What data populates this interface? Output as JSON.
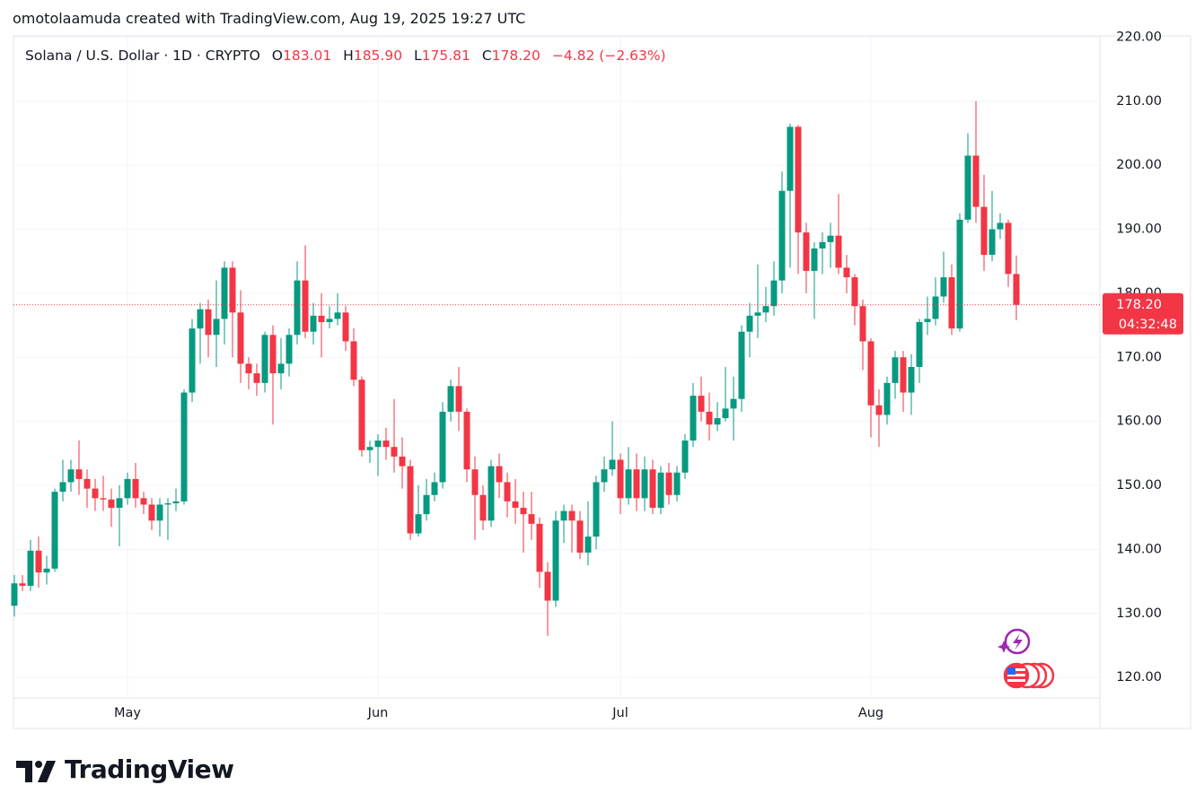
{
  "header": {
    "attribution": "omotolaamuda created with TradingView.com, Aug 19, 2025 19:27 UTC"
  },
  "footer": {
    "brand": "TradingView"
  },
  "chart_data": {
    "type": "candlestick",
    "legend": {
      "symbol": "Solana / U.S. Dollar · 1D · CRYPTO",
      "open_label": "O",
      "open": "183.01",
      "high_label": "H",
      "high": "185.90",
      "low_label": "L",
      "low": "175.81",
      "close_label": "C",
      "close": "178.20",
      "change": "−4.82 (−2.63%)"
    },
    "last_price_label": {
      "price": "178.20",
      "countdown": "04:32:48"
    },
    "up_color": "#089981",
    "down_color": "#f23645",
    "grid": true,
    "ylim": [
      116.8,
      220.2
    ],
    "yticks": [
      {
        "value": 120,
        "label": "120.00"
      },
      {
        "value": 130,
        "label": "130.00"
      },
      {
        "value": 140,
        "label": "140.00"
      },
      {
        "value": 150,
        "label": "150.00"
      },
      {
        "value": 160,
        "label": "160.00"
      },
      {
        "value": 170,
        "label": "170.00"
      },
      {
        "value": 180,
        "label": "180.00"
      },
      {
        "value": 190,
        "label": "190.00"
      },
      {
        "value": 200,
        "label": "200.00"
      },
      {
        "value": 210,
        "label": "210.00"
      },
      {
        "value": 220,
        "label": "220.00"
      }
    ],
    "categories": [
      null,
      null,
      null,
      null,
      null,
      null,
      null,
      null,
      null,
      null,
      null,
      null,
      null,
      null,
      "May",
      null,
      null,
      null,
      null,
      null,
      null,
      null,
      null,
      null,
      null,
      null,
      null,
      null,
      null,
      null,
      null,
      null,
      null,
      null,
      null,
      null,
      null,
      null,
      null,
      null,
      null,
      null,
      null,
      null,
      null,
      "Jun",
      null,
      null,
      null,
      null,
      null,
      null,
      null,
      null,
      null,
      null,
      null,
      null,
      null,
      null,
      null,
      null,
      null,
      null,
      null,
      null,
      null,
      null,
      null,
      null,
      null,
      null,
      null,
      null,
      null,
      "Jul",
      null,
      null,
      null,
      null,
      null,
      null,
      null,
      null,
      null,
      null,
      null,
      null,
      null,
      null,
      null,
      null,
      null,
      null,
      null,
      null,
      null,
      null,
      null,
      null,
      null,
      null,
      null,
      null,
      null,
      null,
      "Aug",
      null,
      null,
      null,
      null,
      null,
      null,
      null,
      null,
      null,
      null,
      null,
      null,
      null,
      null,
      null,
      null,
      null,
      null
    ],
    "open": [
      131.2,
      134.7,
      134.3,
      139.8,
      136.4,
      137,
      149,
      150.5,
      152.5,
      151,
      149.5,
      148,
      147.8,
      146.5,
      148,
      151,
      148,
      147,
      144.5,
      147,
      147.2,
      147.5,
      164.5,
      174.5,
      177.5,
      173.5,
      176,
      184,
      177,
      169,
      167.5,
      166,
      173.5,
      167.5,
      169,
      173.5,
      182,
      174,
      176.5,
      175.5,
      176,
      177,
      172.5,
      166.5,
      155.5,
      156,
      157,
      156,
      154.5,
      153,
      142.5,
      145.5,
      148.5,
      150.5,
      161.5,
      165.5,
      161.5,
      152.5,
      148.5,
      144.5,
      153,
      150.5,
      147.5,
      146.5,
      145.5,
      144,
      136.5,
      132,
      144.5,
      146,
      144.5,
      139.5,
      142,
      150.5,
      152.5,
      154,
      148,
      152.5,
      148,
      152.5,
      146.5,
      152,
      148.5,
      152,
      157,
      164,
      161.5,
      159.5,
      160.5,
      162,
      163.5,
      174,
      176.5,
      177,
      178,
      182,
      196,
      206,
      189.5,
      183.5,
      187,
      188,
      189,
      184,
      182.5,
      178,
      172.5,
      162.5,
      161,
      166,
      170,
      164.5,
      168.5,
      175.5,
      176,
      179.5,
      182.5,
      174.5,
      191.5,
      201.5,
      193.5,
      186,
      190,
      191,
      183.01
    ],
    "high": [
      136,
      136,
      141.5,
      142,
      139,
      149.5,
      154,
      154,
      157,
      152.5,
      151,
      151.5,
      149.5,
      150,
      152,
      153.5,
      149,
      148,
      148,
      148,
      149.5,
      165,
      176,
      178.5,
      179,
      182,
      185,
      185,
      180.5,
      170,
      169,
      174,
      175,
      173,
      174.5,
      185,
      187.5,
      178.5,
      180,
      178,
      180,
      178,
      174.5,
      167,
      157,
      158,
      159,
      163.5,
      157.5,
      154,
      150,
      151,
      152,
      163,
      166.5,
      168.5,
      162,
      154.5,
      150,
      154,
      155,
      152,
      151,
      149,
      149,
      145,
      138,
      146,
      147,
      147,
      146,
      147.5,
      151.5,
      154.5,
      160,
      155,
      156,
      155,
      154.5,
      154,
      153,
      153.5,
      153,
      158,
      166,
      167,
      164.5,
      163,
      168.5,
      167,
      175,
      178.5,
      184.5,
      181,
      185,
      199,
      206.5,
      206.3,
      191,
      188,
      189.5,
      191,
      195.5,
      186,
      183,
      179,
      173,
      165,
      167,
      171,
      171,
      170.5,
      176,
      179.5,
      182.5,
      186.5,
      184.5,
      192.5,
      205,
      210,
      198.5,
      196,
      192.5,
      191.5,
      185.9
    ],
    "low": [
      129.5,
      133.5,
      133.5,
      134,
      134.5,
      136.5,
      147.5,
      149,
      148.5,
      146.5,
      146,
      146,
      143.5,
      140.5,
      147,
      146.5,
      145.5,
      143,
      142,
      141.5,
      146,
      147,
      163,
      169,
      170,
      168.5,
      172,
      170,
      166,
      165,
      164,
      164.5,
      159.5,
      165,
      167,
      172,
      173,
      172,
      170,
      174.5,
      175,
      171,
      165.5,
      154.5,
      153.5,
      151.5,
      154,
      152,
      149.5,
      141.5,
      142,
      144.5,
      147.5,
      149.5,
      160,
      158.5,
      150.5,
      141.5,
      143,
      143.5,
      148,
      145,
      144,
      139.5,
      141.5,
      134,
      126.5,
      131,
      141,
      139.5,
      138.5,
      137.5,
      140,
      149,
      151.5,
      145.5,
      147,
      146,
      146,
      145.5,
      145.5,
      147,
      147.5,
      151,
      156,
      160,
      157,
      158.5,
      160,
      157,
      161.5,
      170,
      173,
      175.5,
      176.5,
      180,
      184,
      183,
      180,
      176,
      183,
      184,
      183,
      180,
      175,
      168,
      157.5,
      156,
      159.5,
      163.5,
      161.5,
      161,
      166,
      173.5,
      175,
      178.5,
      173.5,
      174,
      191,
      191,
      183.5,
      185,
      188.5,
      181,
      175.81
    ],
    "close": [
      134.7,
      134.3,
      139.8,
      136.4,
      137,
      149,
      150.5,
      152.5,
      151,
      149.5,
      148,
      147.8,
      146.5,
      148,
      151,
      148,
      147,
      144.5,
      147,
      147.2,
      147.5,
      164.5,
      174.5,
      177.5,
      173.5,
      176,
      184,
      177,
      169,
      167.5,
      166,
      173.5,
      167.5,
      169,
      173.5,
      182,
      174,
      176.5,
      175.5,
      176,
      177,
      172.5,
      166.5,
      155.5,
      156,
      157,
      156,
      154.5,
      153,
      142.5,
      145.5,
      148.5,
      150.5,
      161.5,
      165.5,
      161.5,
      152.5,
      148.5,
      144.5,
      153,
      150.5,
      147.5,
      146.5,
      145.5,
      144,
      136.5,
      132,
      144.5,
      146,
      144.5,
      139.5,
      142,
      150.5,
      152.5,
      154,
      148,
      152.5,
      148,
      152.5,
      146.5,
      152,
      148.5,
      152,
      157,
      164,
      161.5,
      159.5,
      160.5,
      162,
      163.5,
      174,
      176.5,
      177,
      178,
      182,
      196,
      206,
      189.5,
      183.5,
      187,
      188,
      189,
      184,
      182.5,
      178,
      172.5,
      162.5,
      161,
      166,
      170,
      164.5,
      168.5,
      175.5,
      176,
      179.5,
      182.5,
      174.5,
      191.5,
      201.5,
      193.5,
      186,
      190,
      191,
      183.02,
      178.2
    ]
  }
}
